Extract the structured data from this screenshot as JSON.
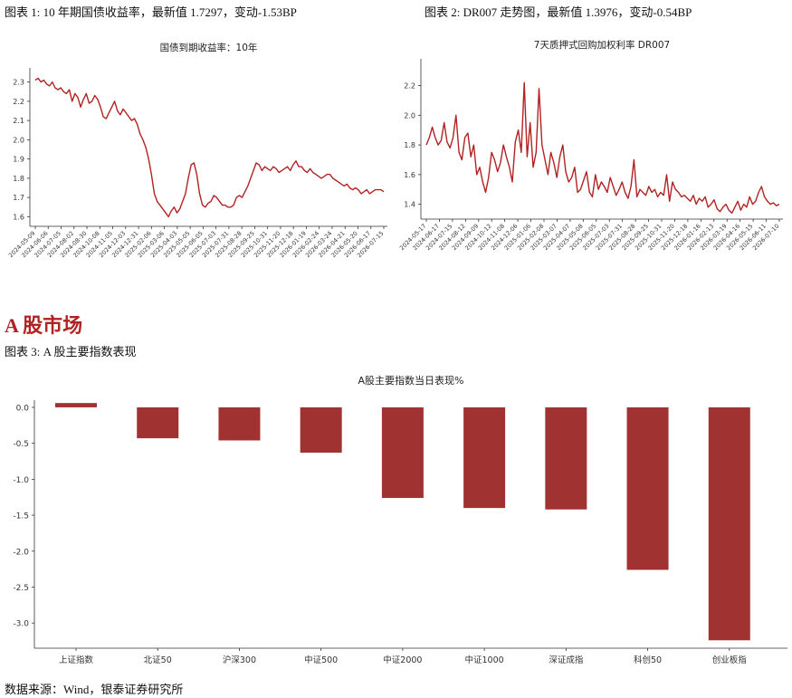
{
  "captions": {
    "fig1": "图表 1: 10 年期国债收益率，最新值 1.7297，变动-1.53BP",
    "fig2": "图表 2: DR007 走势图，最新值 1.3976，变动-0.54BP",
    "section": "A 股市场",
    "fig3": "图表 3: A 股主要指数表现",
    "source": "数据来源：Wind，银泰证券研究所"
  },
  "colors": {
    "line": "#b22222",
    "bar": "#a03232",
    "section": "#b22222"
  },
  "chart_data": [
    {
      "type": "line",
      "title": "国债到期收益率：10年",
      "xlabel": "",
      "ylabel": "",
      "ylim": [
        1.55,
        2.35
      ],
      "yticks": [
        "1.6",
        "1.7",
        "1.8",
        "1.9",
        "2.0",
        "2.1",
        "2.2",
        "2.3"
      ],
      "xticks": [
        "2024-05-09",
        "2024-06-06",
        "2024-07-05",
        "2024-08-02",
        "2024-08-30",
        "2024-10-08",
        "2024-11-05",
        "2024-12-03",
        "2024-12-31",
        "2025-02-06",
        "2025-03-06",
        "2025-04-03",
        "2025-05-05",
        "2025-06-05",
        "2025-07-03",
        "2025-07-31",
        "2025-08-28",
        "2025-09-25",
        "2025-10-31",
        "2025-11-20",
        "2025-12-18",
        "2026-01-19",
        "2026-02-24",
        "2026-03-24",
        "2026-04-21",
        "2026-05-20",
        "2026-06-17",
        "2026-07-15"
      ],
      "grid": false,
      "series": [
        {
          "values": [
            2.31,
            2.32,
            2.3,
            2.31,
            2.29,
            2.28,
            2.3,
            2.27,
            2.26,
            2.27,
            2.25,
            2.24,
            2.26,
            2.2,
            2.24,
            2.22,
            2.17,
            2.21,
            2.24,
            2.19,
            2.2,
            2.23,
            2.21,
            2.17,
            2.12,
            2.11,
            2.14,
            2.17,
            2.2,
            2.15,
            2.13,
            2.16,
            2.14,
            2.12,
            2.1,
            2.11,
            2.08,
            2.03,
            2.0,
            1.96,
            1.9,
            1.82,
            1.72,
            1.68,
            1.66,
            1.64,
            1.62,
            1.6,
            1.63,
            1.65,
            1.62,
            1.64,
            1.68,
            1.72,
            1.8,
            1.87,
            1.88,
            1.82,
            1.72,
            1.66,
            1.65,
            1.67,
            1.68,
            1.71,
            1.7,
            1.68,
            1.66,
            1.66,
            1.65,
            1.65,
            1.66,
            1.7,
            1.71,
            1.7,
            1.73,
            1.76,
            1.8,
            1.84,
            1.88,
            1.87,
            1.84,
            1.86,
            1.85,
            1.84,
            1.86,
            1.85,
            1.83,
            1.84,
            1.85,
            1.86,
            1.84,
            1.87,
            1.89,
            1.86,
            1.86,
            1.84,
            1.83,
            1.85,
            1.83,
            1.82,
            1.81,
            1.8,
            1.81,
            1.82,
            1.82,
            1.8,
            1.79,
            1.78,
            1.77,
            1.76,
            1.77,
            1.75,
            1.74,
            1.75,
            1.74,
            1.72,
            1.73,
            1.74,
            1.72,
            1.73,
            1.74,
            1.74,
            1.74,
            1.73
          ]
        }
      ]
    },
    {
      "type": "line",
      "title": "7天质押式回购加权利率 DR007",
      "xlabel": "",
      "ylabel": "",
      "ylim": [
        1.3,
        2.35
      ],
      "yticks": [
        "1.4",
        "1.6",
        "1.8",
        "2.0",
        "2.2"
      ],
      "xticks": [
        "2024-05-17",
        "2024-06-17",
        "2024-07-15",
        "2024-08-12",
        "2024-09-09",
        "2024-10-12",
        "2024-11-08",
        "2024-12-06",
        "2025-01-06",
        "2025-02-08",
        "2025-03-07",
        "2025-04-07",
        "2025-05-08",
        "2025-06-05",
        "2025-07-03",
        "2025-07-31",
        "2025-08-28",
        "2025-09-25",
        "2025-10-31",
        "2025-11-20",
        "2025-12-18",
        "2026-01-16",
        "2026-02-13",
        "2026-03-19",
        "2026-04-16",
        "2026-05-15",
        "2026-06-11",
        "2026-07-10"
      ],
      "grid": false,
      "series": [
        {
          "values": [
            1.8,
            1.85,
            1.92,
            1.85,
            1.8,
            1.83,
            1.95,
            1.82,
            1.78,
            1.85,
            2.0,
            1.75,
            1.7,
            1.85,
            1.88,
            1.72,
            1.8,
            1.6,
            1.65,
            1.55,
            1.48,
            1.58,
            1.75,
            1.7,
            1.62,
            1.68,
            1.8,
            1.72,
            1.65,
            1.55,
            1.82,
            1.9,
            1.75,
            2.22,
            1.72,
            1.95,
            1.65,
            1.75,
            2.18,
            1.8,
            1.7,
            1.6,
            1.75,
            1.68,
            1.58,
            1.72,
            1.8,
            1.62,
            1.55,
            1.58,
            1.65,
            1.48,
            1.5,
            1.56,
            1.62,
            1.48,
            1.45,
            1.6,
            1.5,
            1.55,
            1.52,
            1.48,
            1.58,
            1.52,
            1.46,
            1.5,
            1.55,
            1.48,
            1.44,
            1.52,
            1.7,
            1.45,
            1.5,
            1.48,
            1.46,
            1.52,
            1.48,
            1.5,
            1.45,
            1.48,
            1.46,
            1.6,
            1.42,
            1.55,
            1.5,
            1.48,
            1.45,
            1.46,
            1.44,
            1.42,
            1.46,
            1.4,
            1.44,
            1.42,
            1.45,
            1.38,
            1.4,
            1.43,
            1.37,
            1.35,
            1.38,
            1.4,
            1.36,
            1.34,
            1.38,
            1.42,
            1.36,
            1.4,
            1.38,
            1.45,
            1.4,
            1.42,
            1.48,
            1.52,
            1.45,
            1.42,
            1.4,
            1.41,
            1.39,
            1.4
          ]
        }
      ]
    },
    {
      "type": "bar",
      "title": "A股主要指数当日表现%",
      "xlabel": "",
      "ylabel": "",
      "ylim": [
        -3.35,
        0.1
      ],
      "yticks": [
        "0.0",
        "-0.5",
        "-1.0",
        "-1.5",
        "-2.0",
        "-2.5",
        "-3.0"
      ],
      "grid": false,
      "categories": [
        "上证指数",
        "北证50",
        "沪深300",
        "中证500",
        "中证2000",
        "中证1000",
        "深证成指",
        "科创50",
        "创业板指"
      ],
      "values": [
        0.06,
        -0.43,
        -0.46,
        -0.63,
        -1.26,
        -1.4,
        -1.42,
        -2.26,
        -3.24
      ]
    }
  ]
}
